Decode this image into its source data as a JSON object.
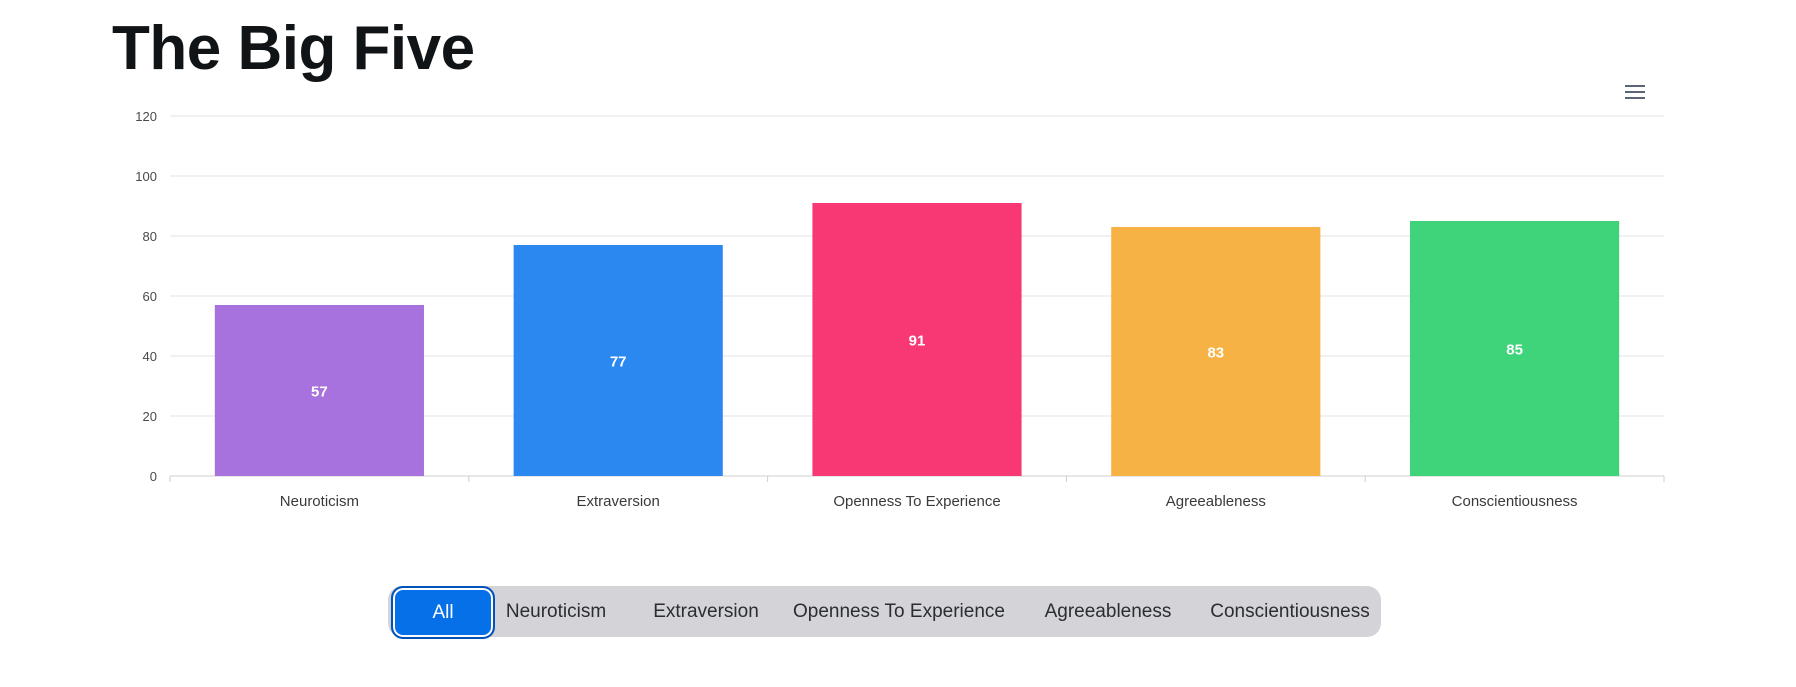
{
  "page": {
    "title": "The Big Five"
  },
  "menu": {
    "icon": "hamburger-menu-icon"
  },
  "chart_data": {
    "type": "bar",
    "title": "",
    "xlabel": "",
    "ylabel": "",
    "categories": [
      "Neuroticism",
      "Extraversion",
      "Openness To Experience",
      "Agreeableness",
      "Conscientiousness"
    ],
    "values": [
      57,
      77,
      91,
      83,
      85
    ],
    "colors": [
      "#a46ddc",
      "#2384f0",
      "#f7326f",
      "#f6b03f",
      "#39d276"
    ],
    "ylim": [
      0,
      120
    ],
    "yticks": [
      0,
      20,
      40,
      60,
      80,
      100,
      120
    ],
    "grid": true,
    "legend": "none",
    "data_labels": true
  },
  "filters": {
    "items": [
      "All",
      "Neuroticism",
      "Extraversion",
      "Openness To Experience",
      "Agreeableness",
      "Conscientiousness"
    ],
    "selected": "All",
    "active_color": "#0570e8",
    "bar_color": "#d4d4d8"
  }
}
